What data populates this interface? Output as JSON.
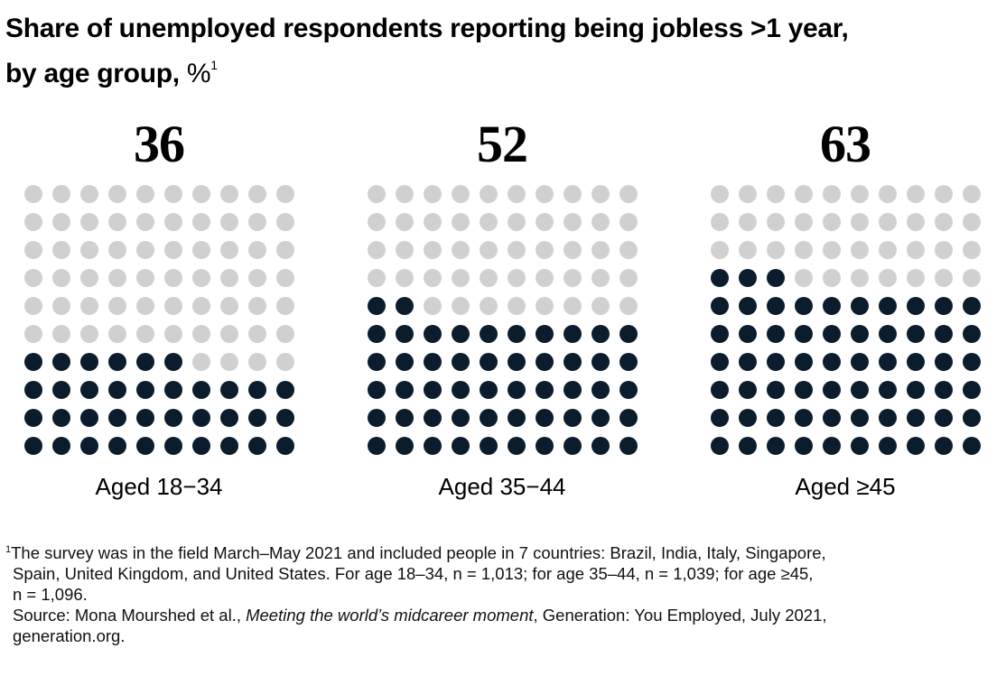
{
  "title": {
    "main": "Share of unemployed respondents reporting being jobless >1 year,",
    "line2": "by age group,",
    "unit": "%",
    "footnote_mark": "1"
  },
  "colors": {
    "filled": "#0b1c2c",
    "empty": "#d0d0d0"
  },
  "chart_data": {
    "type": "waffle",
    "title": "Share of unemployed respondents reporting being jobless >1 year, by age group, %",
    "grid": {
      "rows": 10,
      "cols": 10
    },
    "categories": [
      "Aged 18−34",
      "Aged 35−44",
      "Aged ≥45"
    ],
    "values": [
      36,
      52,
      63
    ],
    "display_values": [
      "36",
      "52",
      "63"
    ]
  },
  "footnote": {
    "mark": "1",
    "line1": "The survey was in the field March–May 2021 and included people in 7 countries: Brazil, India, Italy, Singapore,",
    "line2": "Spain, United Kingdom, and United States. For age 18–34, n = 1,013; for age 35–44, n = 1,039; for age ≥45,",
    "line3": "n = 1,096.",
    "source_prefix": "Source: Mona Mourshed et al., ",
    "source_title": "Meeting the world’s midcareer moment",
    "source_suffix": ", Generation: You Employed, July 2021,",
    "source_line2": "generation.org."
  }
}
